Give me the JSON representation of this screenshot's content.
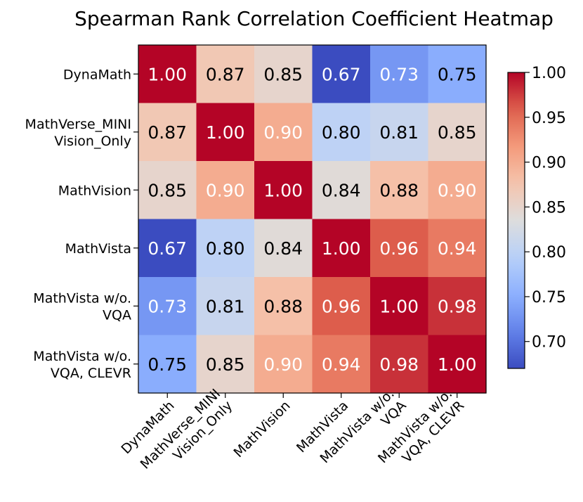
{
  "chart_data": {
    "type": "heatmap",
    "title": "Spearman Rank Correlation Coefficient Heatmap",
    "row_labels": [
      [
        "DynaMath"
      ],
      [
        "MathVerse_MINI",
        "Vision_Only"
      ],
      [
        "MathVision"
      ],
      [
        "MathVista"
      ],
      [
        "MathVista w/o.",
        "VQA"
      ],
      [
        "MathVista w/o.",
        "VQA, CLEVR"
      ]
    ],
    "col_labels": [
      [
        "DynaMath"
      ],
      [
        "MathVerse_MINI",
        "Vision_Only"
      ],
      [
        "MathVision"
      ],
      [
        "MathVista"
      ],
      [
        "MathVista w/o.",
        "VQA"
      ],
      [
        "MathVista w/o.",
        "VQA, CLEVR"
      ]
    ],
    "values": [
      [
        1.0,
        0.87,
        0.85,
        0.67,
        0.73,
        0.75
      ],
      [
        0.87,
        1.0,
        0.9,
        0.8,
        0.81,
        0.85
      ],
      [
        0.85,
        0.9,
        1.0,
        0.84,
        0.88,
        0.9
      ],
      [
        0.67,
        0.8,
        0.84,
        1.0,
        0.96,
        0.94
      ],
      [
        0.73,
        0.81,
        0.88,
        0.96,
        1.0,
        0.98
      ],
      [
        0.75,
        0.85,
        0.9,
        0.94,
        0.98,
        1.0
      ]
    ],
    "cell_labels": [
      [
        "1.00",
        "0.87",
        "0.85",
        "0.67",
        "0.73",
        "0.75"
      ],
      [
        "0.87",
        "1.00",
        "0.90",
        "0.80",
        "0.81",
        "0.85"
      ],
      [
        "0.85",
        "0.90",
        "1.00",
        "0.84",
        "0.88",
        "0.90"
      ],
      [
        "0.67",
        "0.80",
        "0.84",
        "1.00",
        "0.96",
        "0.94"
      ],
      [
        "0.73",
        "0.81",
        "0.88",
        "0.96",
        "1.00",
        "0.98"
      ],
      [
        "0.75",
        "0.85",
        "0.90",
        "0.94",
        "0.98",
        "1.00"
      ]
    ],
    "colormap": "coolwarm",
    "value_range": [
      0.67,
      1.0
    ],
    "colorbar": {
      "ticks": [
        0.7,
        0.75,
        0.8,
        0.85,
        0.9,
        0.95,
        1.0
      ],
      "tick_labels": [
        "0.70",
        "0.75",
        "0.80",
        "0.85",
        "0.90",
        "0.95",
        "1.00"
      ],
      "position": "right"
    }
  }
}
